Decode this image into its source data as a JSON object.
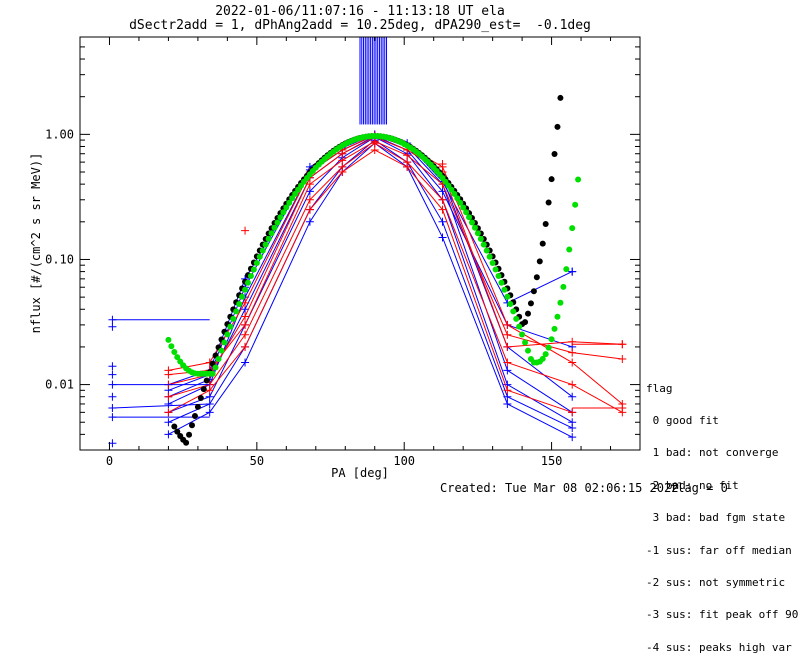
{
  "chart_data": {
    "type": "scatter",
    "title": "2022-01-06/11:07:16 - 11:13:18 UT ela",
    "subtitle": "dSectr2add = 1, dPhAng2add = 10.25deg, dPA290_est=  -0.1deg",
    "xlabel": "PA [deg]",
    "ylabel": "nflux [#/(cm^2 s sr MeV)]",
    "xlim": [
      -10,
      180
    ],
    "ylim": [
      0.003,
      6
    ],
    "yscale": "log",
    "xticks": [
      0,
      50,
      100,
      150
    ],
    "yticks": [
      0.01,
      0.1,
      1.0
    ],
    "ytick_labels": [
      "0.01",
      "0.10",
      "1.00"
    ],
    "grid": false,
    "blue_curves": [
      [
        [
          20,
          0.007
        ],
        [
          34,
          0.01
        ],
        [
          46,
          0.05
        ],
        [
          68,
          0.5
        ],
        [
          79,
          0.75
        ],
        [
          90,
          0.98
        ],
        [
          101,
          0.8
        ],
        [
          113,
          0.4
        ],
        [
          135,
          0.013
        ],
        [
          157,
          0.006
        ]
      ],
      [
        [
          20,
          0.006
        ],
        [
          34,
          0.008
        ],
        [
          46,
          0.03
        ],
        [
          68,
          0.35
        ],
        [
          79,
          0.65
        ],
        [
          90,
          0.95
        ],
        [
          101,
          0.7
        ],
        [
          113,
          0.3
        ],
        [
          135,
          0.01
        ],
        [
          157,
          0.005
        ]
      ],
      [
        [
          20,
          0.005
        ],
        [
          34,
          0.007
        ],
        [
          46,
          0.02
        ],
        [
          68,
          0.25
        ],
        [
          79,
          0.55
        ],
        [
          90,
          0.9
        ],
        [
          101,
          0.6
        ],
        [
          113,
          0.2
        ],
        [
          135,
          0.008
        ],
        [
          157,
          0.0045
        ]
      ],
      [
        [
          20,
          0.009
        ],
        [
          34,
          0.012
        ],
        [
          46,
          0.06
        ],
        [
          68,
          0.55
        ],
        [
          79,
          0.78
        ],
        [
          90,
          1.0
        ],
        [
          101,
          0.82
        ],
        [
          113,
          0.45
        ],
        [
          135,
          0.02
        ],
        [
          157,
          0.008
        ]
      ],
      [
        [
          20,
          0.004
        ],
        [
          34,
          0.006
        ],
        [
          46,
          0.015
        ],
        [
          68,
          0.2
        ],
        [
          79,
          0.5
        ],
        [
          90,
          0.85
        ],
        [
          101,
          0.55
        ],
        [
          113,
          0.15
        ],
        [
          135,
          0.007
        ],
        [
          157,
          0.0038
        ]
      ],
      [
        [
          20,
          0.008
        ],
        [
          34,
          0.011
        ],
        [
          46,
          0.04
        ],
        [
          68,
          0.45
        ],
        [
          79,
          0.7
        ],
        [
          90,
          0.97
        ],
        [
          101,
          0.75
        ],
        [
          113,
          0.35
        ],
        [
          135,
          0.03
        ],
        [
          157,
          0.02
        ]
      ],
      [
        [
          20,
          0.01
        ],
        [
          34,
          0.013
        ],
        [
          46,
          0.07
        ],
        [
          68,
          0.52
        ],
        [
          79,
          0.8
        ],
        [
          90,
          0.99
        ],
        [
          101,
          0.85
        ],
        [
          113,
          0.42
        ],
        [
          135,
          0.045
        ],
        [
          157,
          0.08
        ]
      ]
    ],
    "red_curves": [
      [
        [
          20,
          0.01
        ],
        [
          34,
          0.012
        ],
        [
          46,
          0.035
        ],
        [
          68,
          0.45
        ],
        [
          79,
          0.7
        ],
        [
          90,
          0.95
        ],
        [
          101,
          0.75
        ],
        [
          113,
          0.5
        ],
        [
          135,
          0.02
        ],
        [
          157,
          0.022
        ],
        [
          174,
          0.021
        ]
      ],
      [
        [
          20,
          0.013
        ],
        [
          34,
          0.015
        ],
        [
          46,
          0.045
        ],
        [
          68,
          0.5
        ],
        [
          79,
          0.75
        ],
        [
          90,
          0.98
        ],
        [
          101,
          0.8
        ],
        [
          113,
          0.55
        ],
        [
          135,
          0.03
        ],
        [
          157,
          0.015
        ],
        [
          174,
          0.007
        ]
      ],
      [
        [
          20,
          0.008
        ],
        [
          34,
          0.01
        ],
        [
          46,
          0.025
        ],
        [
          68,
          0.3
        ],
        [
          79,
          0.55
        ],
        [
          90,
          0.85
        ],
        [
          101,
          0.6
        ],
        [
          113,
          0.3
        ],
        [
          135,
          0.015
        ],
        [
          157,
          0.01
        ],
        [
          174,
          0.006
        ]
      ],
      [
        [
          20,
          0.012
        ],
        [
          34,
          0.013
        ],
        [
          46,
          0.03
        ],
        [
          68,
          0.4
        ],
        [
          79,
          0.62
        ],
        [
          90,
          0.88
        ],
        [
          101,
          0.68
        ],
        [
          113,
          0.4
        ],
        [
          135,
          0.025
        ],
        [
          157,
          0.018
        ],
        [
          174,
          0.016
        ]
      ],
      [
        [
          20,
          0.006
        ],
        [
          34,
          0.009
        ],
        [
          46,
          0.02
        ],
        [
          68,
          0.25
        ],
        [
          79,
          0.5
        ],
        [
          90,
          0.75
        ],
        [
          101,
          0.55
        ],
        [
          113,
          0.25
        ],
        [
          135,
          0.009
        ],
        [
          157,
          0.006
        ]
      ]
    ],
    "blue_spike": {
      "x_range": [
        85,
        94
      ],
      "y_from": 1.2
    },
    "outlier_points": [
      {
        "x": 1,
        "y": 0.033,
        "color": "blue"
      },
      {
        "x": 1,
        "y": 0.029,
        "color": "blue"
      },
      {
        "x": 1,
        "y": 0.014,
        "color": "blue"
      },
      {
        "x": 1,
        "y": 0.012,
        "color": "blue"
      },
      {
        "x": 1,
        "y": 0.01,
        "color": "blue"
      },
      {
        "x": 1,
        "y": 0.008,
        "color": "blue"
      },
      {
        "x": 1,
        "y": 0.0065,
        "color": "blue"
      },
      {
        "x": 1,
        "y": 0.0055,
        "color": "blue"
      },
      {
        "x": 1,
        "y": 0.0034,
        "color": "blue"
      },
      {
        "x": 46,
        "y": 0.17,
        "color": "red"
      },
      {
        "x": 113,
        "y": 0.58,
        "color": "red"
      },
      {
        "x": 157,
        "y": 0.08,
        "color": "blue"
      },
      {
        "x": 174,
        "y": 0.021,
        "color": "red"
      },
      {
        "x": 174,
        "y": 0.0065,
        "color": "red"
      }
    ],
    "green_fit": {
      "color": "#00e000",
      "x_range": [
        20,
        159
      ],
      "peak_x": 90,
      "peak_y": 0.97,
      "sigma": 18.5,
      "min_left": {
        "x": 30,
        "y": 0.0122
      },
      "min_right": {
        "x": 145,
        "y": 0.015
      }
    },
    "black_fit": {
      "color": "#000000",
      "x_range": [
        22,
        153
      ],
      "peak_x": 90,
      "peak_y": 0.97,
      "sigma": 19,
      "min_left": {
        "x": 30,
        "y": 0.0031
      },
      "min_right": {
        "x": 137,
        "y": 0.024
      }
    },
    "colors": {
      "blue": "#0000ff",
      "red": "#ff0000",
      "green": "#00e000",
      "black": "#000000"
    }
  },
  "legend": {
    "title": "flag",
    "items": [
      " 0 good fit",
      " 1 bad: not converge",
      " 2 bad: no fit",
      " 3 bad: bad fgm state",
      "-1 sus: far off median",
      "-2 sus: not symmetric",
      "-3 sus: fit peak off 90",
      "-4 sus: peaks high var"
    ]
  },
  "footer": {
    "created": "Created: Tue Mar 08 02:06:15 2022",
    "flag": "flag = 0"
  }
}
